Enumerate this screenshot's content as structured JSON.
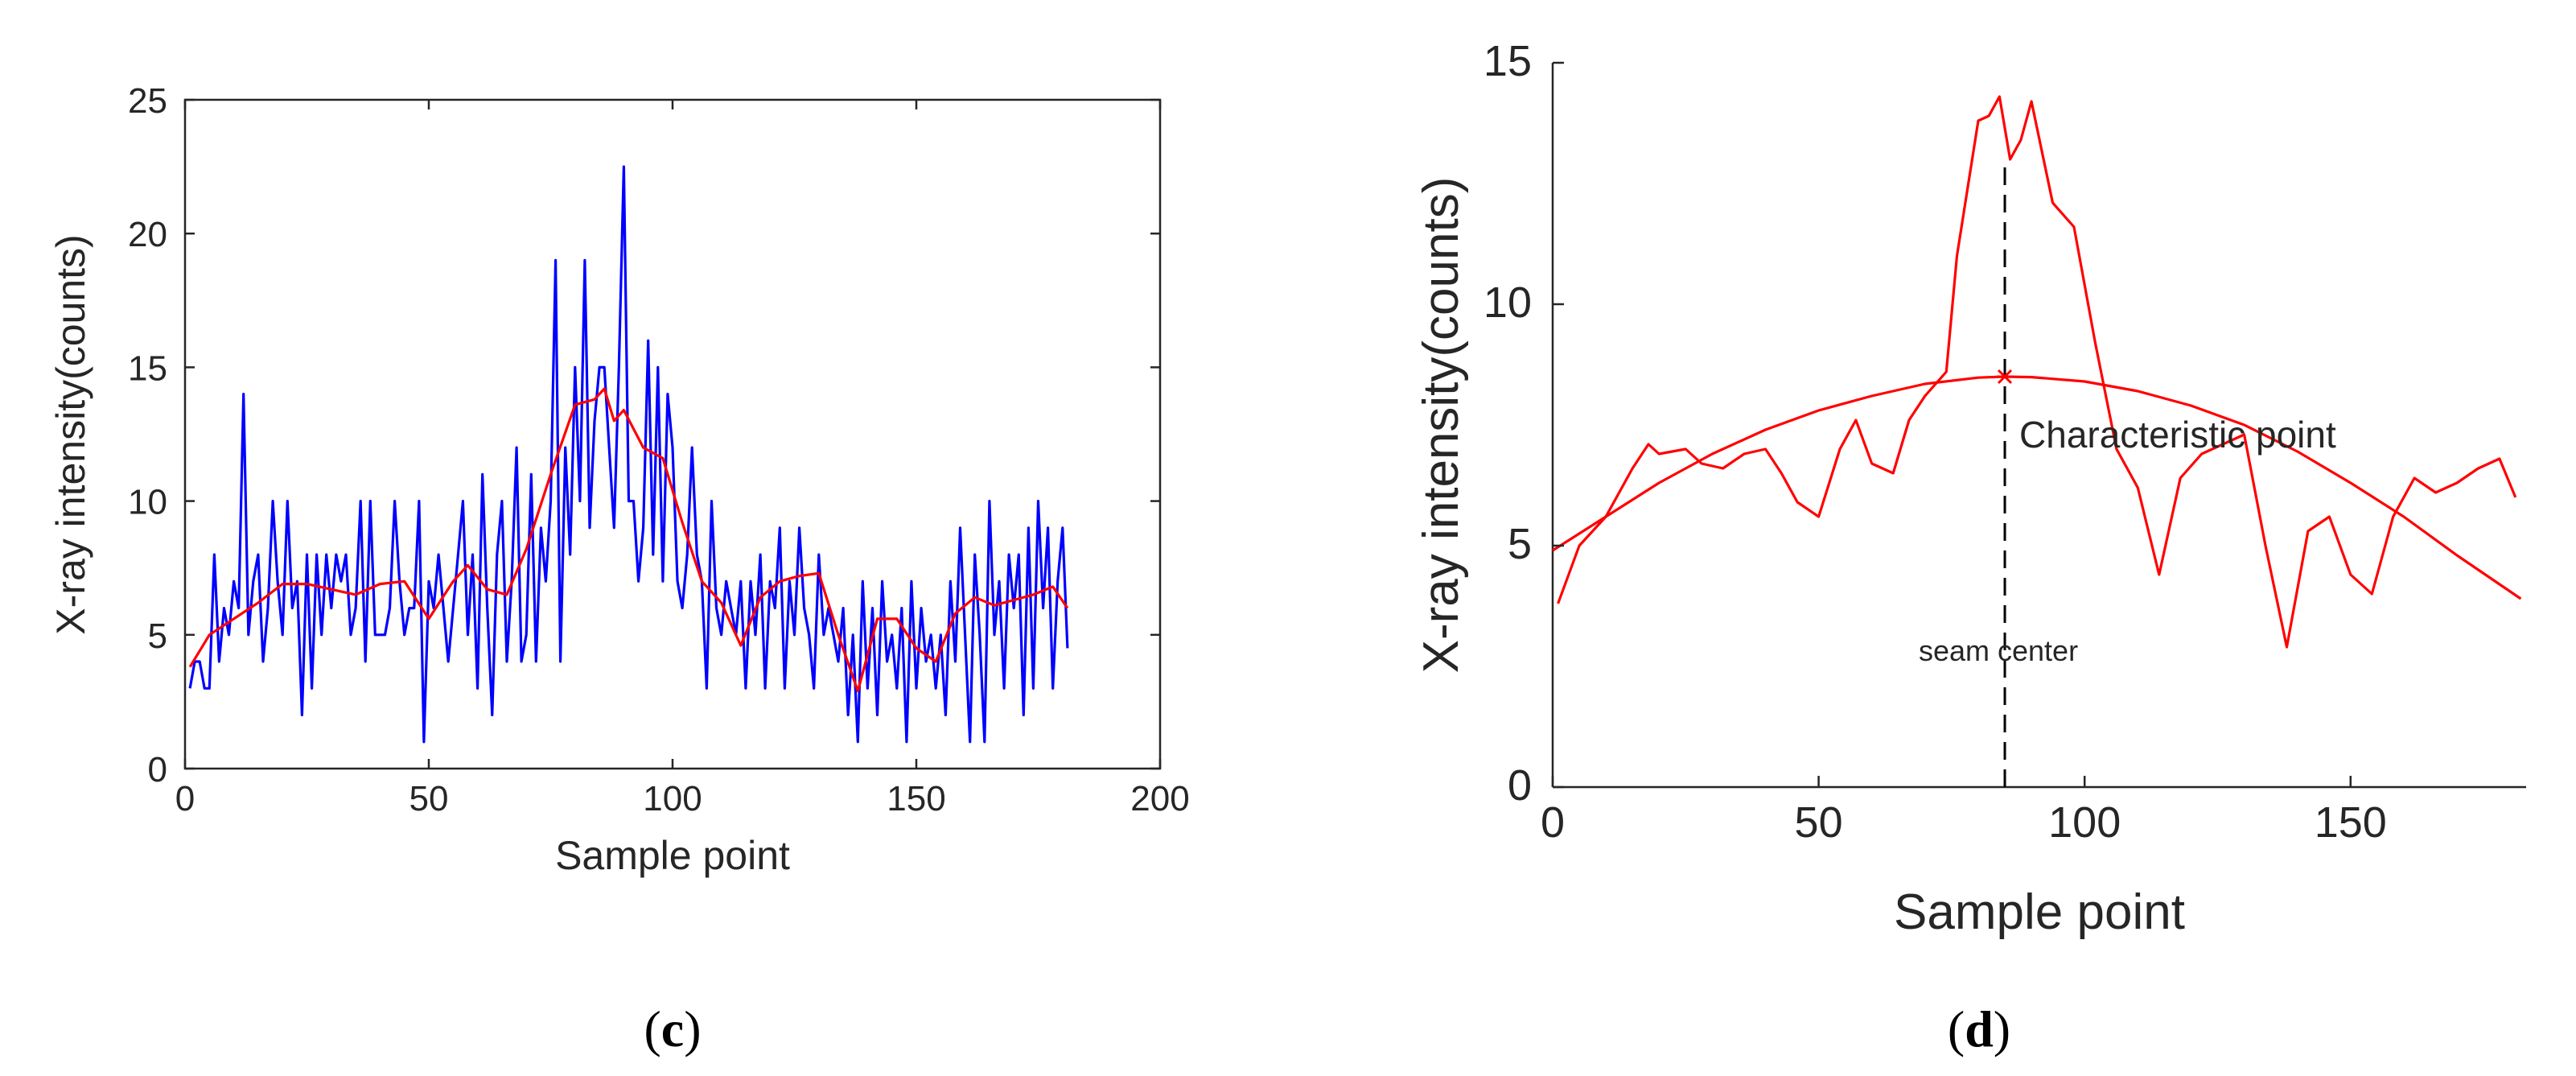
{
  "chart_data": [
    {
      "panel": "c",
      "type": "line",
      "xlabel": "Sample point",
      "ylabel": "X-ray intensity(counts)",
      "xlim": [
        0,
        200
      ],
      "ylim": [
        0,
        25
      ],
      "xticks": [
        0,
        50,
        100,
        150,
        200
      ],
      "yticks": [
        0,
        5,
        10,
        15,
        20,
        25
      ],
      "grid": false,
      "colors": {
        "raw": "#0000ff",
        "smoothed": "#ff0000",
        "axis": "#262626"
      },
      "series": [
        {
          "color": "#0000ff",
          "x": [
            1,
            2,
            3,
            4,
            5,
            6,
            7,
            8,
            9,
            10,
            11,
            12,
            13,
            14,
            15,
            16,
            17,
            18,
            19,
            20,
            21,
            22,
            23,
            24,
            25,
            26,
            27,
            28,
            29,
            30,
            31,
            32,
            33,
            34,
            35,
            36,
            37,
            38,
            39,
            40,
            41,
            42,
            43,
            44,
            45,
            46,
            47,
            48,
            49,
            50,
            51,
            52,
            53,
            54,
            55,
            56,
            57,
            58,
            59,
            60,
            61,
            62,
            63,
            64,
            65,
            66,
            67,
            68,
            69,
            70,
            71,
            72,
            73,
            74,
            75,
            76,
            77,
            78,
            79,
            80,
            81,
            82,
            83,
            84,
            85,
            86,
            87,
            88,
            89,
            90,
            91,
            92,
            93,
            94,
            95,
            96,
            97,
            98,
            99,
            100,
            101,
            102,
            103,
            104,
            105,
            106,
            107,
            108,
            109,
            110,
            111,
            112,
            113,
            114,
            115,
            116,
            117,
            118,
            119,
            120,
            121,
            122,
            123,
            124,
            125,
            126,
            127,
            128,
            129,
            130,
            131,
            132,
            133,
            134,
            135,
            136,
            137,
            138,
            139,
            140,
            141,
            142,
            143,
            144,
            145,
            146,
            147,
            148,
            149,
            150,
            151,
            152,
            153,
            154,
            155,
            156,
            157,
            158,
            159,
            160,
            161,
            162,
            163,
            164,
            165,
            166,
            167,
            168,
            169,
            170,
            171,
            172,
            173,
            174,
            175,
            176,
            177,
            178,
            179,
            180,
            181
          ],
          "y": [
            3,
            4,
            4,
            3,
            3,
            8,
            4,
            6,
            5,
            7,
            6,
            14,
            5,
            7,
            8,
            4,
            6,
            10,
            7,
            5,
            10,
            6,
            7,
            2,
            8,
            3,
            8,
            5,
            8,
            6,
            8,
            7,
            8,
            5,
            6,
            10,
            4,
            10,
            5,
            5,
            5,
            6,
            10,
            7,
            5,
            6,
            6,
            10,
            1,
            7,
            6,
            8,
            6,
            4,
            6,
            8,
            10,
            5,
            8,
            3,
            11,
            6,
            2,
            8,
            10,
            4,
            7,
            12,
            4,
            5,
            11,
            4,
            9,
            7,
            10,
            19,
            4,
            12,
            8,
            15,
            10,
            19,
            9,
            13,
            15,
            15,
            12,
            9,
            15,
            22.5,
            10,
            10,
            7,
            9,
            16,
            8,
            15,
            7,
            14,
            12,
            7,
            6,
            8,
            12,
            8,
            7,
            3,
            10,
            6,
            5,
            7,
            6,
            5,
            7,
            3,
            7,
            5,
            8,
            3,
            7,
            6,
            9,
            3,
            7,
            5,
            9,
            6,
            5,
            3,
            8,
            5,
            6,
            5,
            4,
            6,
            2,
            5,
            1,
            7,
            3,
            6,
            2,
            7,
            4,
            5,
            3,
            6,
            1,
            7,
            3,
            6,
            4,
            5,
            3,
            5,
            2,
            7,
            4,
            9,
            5,
            1,
            8,
            5,
            1,
            10,
            5,
            7,
            3,
            8,
            6,
            8,
            2,
            9,
            3,
            10,
            6,
            9,
            3,
            7,
            9,
            4.5
          ]
        },
        {
          "color": "#ff0000",
          "x": [
            1,
            5,
            10,
            15,
            20,
            25,
            30,
            35,
            40,
            45,
            50,
            55,
            58,
            62,
            66,
            70,
            75,
            80,
            84,
            86,
            88,
            90,
            94,
            98,
            102,
            106,
            110,
            114,
            118,
            122,
            126,
            130,
            134,
            138,
            142,
            146,
            150,
            154,
            158,
            162,
            166,
            170,
            174,
            178,
            181
          ],
          "y": [
            3.8,
            5.0,
            5.6,
            6.2,
            6.9,
            6.9,
            6.7,
            6.5,
            6.9,
            7.0,
            5.6,
            7.0,
            7.6,
            6.7,
            6.5,
            8.2,
            11.0,
            13.6,
            13.8,
            14.2,
            13.0,
            13.4,
            12.0,
            11.6,
            9.2,
            7.0,
            6.2,
            4.6,
            6.4,
            7.0,
            7.2,
            7.3,
            5.0,
            2.9,
            5.6,
            5.6,
            4.5,
            4.0,
            5.8,
            6.4,
            6.1,
            6.3,
            6.5,
            6.8,
            6.0
          ]
        }
      ]
    },
    {
      "panel": "d",
      "type": "line",
      "xlabel": "Sample point",
      "ylabel": "X-ray intensity(counts)",
      "xlim": [
        0,
        183
      ],
      "ylim": [
        0,
        15
      ],
      "xticks": [
        0,
        50,
        100,
        150
      ],
      "yticks": [
        0,
        5,
        10,
        15
      ],
      "grid": false,
      "colors": {
        "curve": "#ff0000",
        "marker_line": "#000000",
        "axis": "#262626"
      },
      "series": [
        {
          "color": "#ff0000",
          "x": [
            1,
            5,
            10,
            15,
            18,
            20,
            25,
            28,
            32,
            36,
            40,
            43,
            46,
            50,
            54,
            57,
            60,
            64,
            67,
            70,
            74,
            76,
            80,
            82,
            84,
            86,
            88,
            90,
            94,
            98,
            102,
            106,
            110,
            114,
            118,
            122,
            126,
            130,
            134,
            138,
            142,
            146,
            150,
            154,
            158,
            162,
            166,
            170,
            174,
            178,
            181
          ],
          "y": [
            3.8,
            5.0,
            5.6,
            6.6,
            7.1,
            6.9,
            7.0,
            6.7,
            6.6,
            6.9,
            7.0,
            6.5,
            5.9,
            5.6,
            7.0,
            7.6,
            6.7,
            6.5,
            7.6,
            8.1,
            8.6,
            11.0,
            13.8,
            13.9,
            14.3,
            13.0,
            13.4,
            14.2,
            12.1,
            11.6,
            9.2,
            7.0,
            6.2,
            4.4,
            6.4,
            6.9,
            7.1,
            7.3,
            5.0,
            2.9,
            5.3,
            5.6,
            4.4,
            4.0,
            5.6,
            6.4,
            6.1,
            6.3,
            6.6,
            6.8,
            6.0
          ]
        },
        {
          "color": "#ff0000",
          "x": [
            0,
            10,
            20,
            30,
            40,
            50,
            60,
            70,
            80,
            85,
            90,
            100,
            110,
            120,
            130,
            140,
            150,
            160,
            170,
            182
          ],
          "y": [
            4.9,
            5.6,
            6.3,
            6.9,
            7.4,
            7.8,
            8.1,
            8.35,
            8.48,
            8.5,
            8.49,
            8.4,
            8.2,
            7.9,
            7.5,
            6.95,
            6.3,
            5.6,
            4.8,
            3.9
          ]
        }
      ],
      "marker_point": {
        "x": 85,
        "y": 8.5,
        "color": "#ff0000"
      },
      "vertical_line": {
        "x": 85,
        "y_from": 0,
        "y_to": 13,
        "style": "dashed",
        "color": "#000000"
      },
      "annotations": {
        "characteristic_point": "Characteristic point",
        "seam_center": "seam center"
      }
    }
  ],
  "panel_labels": [
    {
      "open": "(",
      "letter": "c",
      "close": ")"
    },
    {
      "open": "(",
      "letter": "d",
      "close": ")"
    }
  ]
}
